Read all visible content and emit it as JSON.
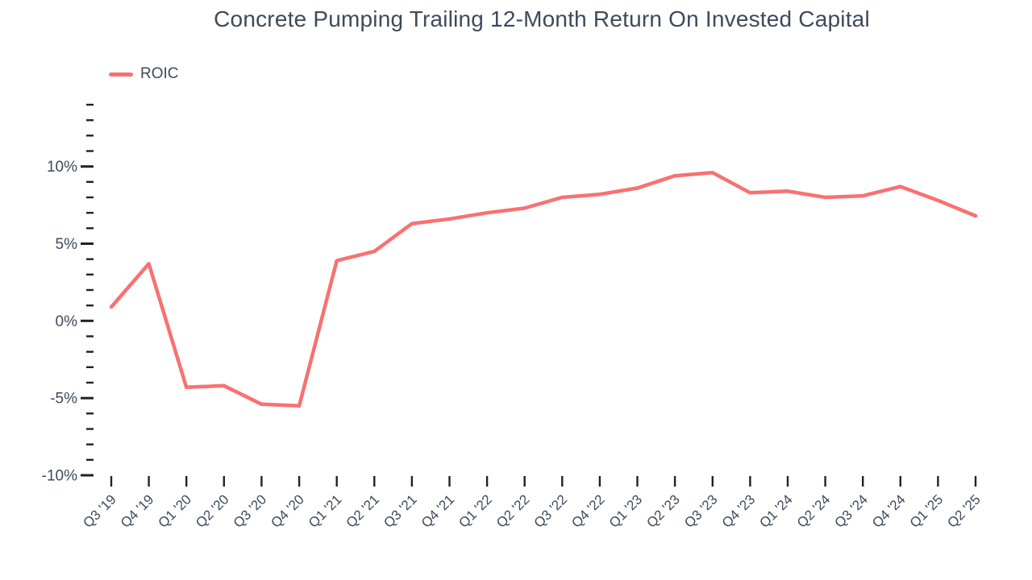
{
  "colors": {
    "accent": "#f87171",
    "text": "#3e4a5b",
    "tick": "#222222",
    "background": "#ffffff"
  },
  "legend": {
    "swatch_icon": "line-swatch-icon",
    "label": "ROIC"
  },
  "chart_data": {
    "type": "line",
    "title": "Concrete Pumping Trailing 12-Month Return On Invested Capital",
    "xlabel": "",
    "ylabel": "",
    "grid": false,
    "legend_position": "top-left",
    "categories": [
      "Q3 '19",
      "Q4 '19",
      "Q1 '20",
      "Q2 '20",
      "Q3 '20",
      "Q4 '20",
      "Q1 '21",
      "Q2 '21",
      "Q3 '21",
      "Q4 '21",
      "Q1 '22",
      "Q2 '22",
      "Q3 '22",
      "Q4 '22",
      "Q1 '23",
      "Q2 '23",
      "Q3 '23",
      "Q4 '23",
      "Q1 '24",
      "Q2 '24",
      "Q3 '24",
      "Q4 '24",
      "Q1 '25",
      "Q2 '25"
    ],
    "series": [
      {
        "name": "ROIC",
        "color": "#f87171",
        "values": [
          0.9,
          3.7,
          -4.3,
          -4.2,
          -5.4,
          -5.5,
          3.9,
          4.5,
          6.3,
          6.6,
          7.0,
          7.3,
          8.0,
          8.2,
          8.6,
          9.4,
          9.6,
          8.3,
          8.4,
          8.0,
          8.1,
          8.7,
          7.8,
          6.8
        ]
      }
    ],
    "yaxis": {
      "min": -10,
      "max": 14,
      "minor_step": 1,
      "major_step": 5,
      "tick_suffix": "%",
      "major_tick_labels": [
        "-10%",
        "-5%",
        "0%",
        "5%",
        "10%"
      ]
    }
  }
}
